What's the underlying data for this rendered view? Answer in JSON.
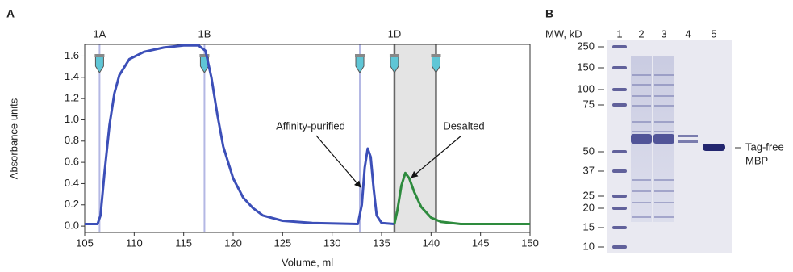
{
  "panels": [
    "A",
    "B"
  ],
  "chart_data": {
    "type": "line",
    "xlabel": "Volume, ml",
    "ylabel": "Absorbance units",
    "xlim": [
      105,
      150
    ],
    "xticks": [
      105,
      110,
      115,
      120,
      125,
      130,
      135,
      140,
      145,
      150
    ],
    "ylim": [
      -0.06,
      1.71
    ],
    "yticks": [
      {
        "value": 0,
        "label": "0.0"
      },
      0.2,
      0.4,
      0.6,
      0.8,
      {
        "value": 1,
        "label": "1.0"
      },
      1.2,
      1.4,
      1.6
    ],
    "series": [
      {
        "color": "#3c4fb8",
        "x": [
          105,
          106.3,
          106.6,
          107,
          107.5,
          108,
          108.5,
          109.5,
          111,
          113,
          115,
          116.5,
          117.2,
          117.8,
          118.4,
          119,
          120,
          121,
          122,
          123,
          125,
          128,
          132.6,
          133,
          133.3,
          133.6,
          133.9,
          134.2,
          134.5,
          135,
          136.3
        ],
        "values": [
          0.02,
          0.02,
          0.1,
          0.5,
          0.95,
          1.25,
          1.42,
          1.57,
          1.64,
          1.68,
          1.7,
          1.7,
          1.65,
          1.4,
          1.05,
          0.75,
          0.45,
          0.27,
          0.17,
          0.1,
          0.05,
          0.03,
          0.02,
          0.2,
          0.55,
          0.73,
          0.65,
          0.35,
          0.1,
          0.03,
          0.02
        ]
      },
      {
        "color": "#2e8b3e",
        "x": [
          136.3,
          136.6,
          137,
          137.4,
          137.8,
          138.3,
          139,
          140,
          141,
          143,
          150
        ],
        "values": [
          0.02,
          0.15,
          0.38,
          0.5,
          0.45,
          0.32,
          0.18,
          0.08,
          0.04,
          0.02,
          0.02
        ]
      }
    ],
    "fractions": [
      {
        "label": "1A",
        "x": 106.5
      },
      {
        "label": "1B",
        "x": 117.1
      },
      {
        "label": null,
        "x": 132.8
      },
      {
        "label": "1D",
        "x": 136.3
      },
      {
        "label": null,
        "x": 140.5
      }
    ],
    "highlight": [
      136.3,
      140.5
    ],
    "annotations": [
      "Affinity-purified",
      "Desalted"
    ]
  },
  "gel": {
    "header": "MW, kD",
    "lanes": [
      "1",
      "2",
      "3",
      "4",
      "5"
    ],
    "markers": [
      "250",
      "150",
      "100",
      "75",
      "50",
      "37",
      "25",
      "20",
      "15",
      "10"
    ],
    "band_label": [
      "Tag-free",
      "MBP"
    ]
  }
}
